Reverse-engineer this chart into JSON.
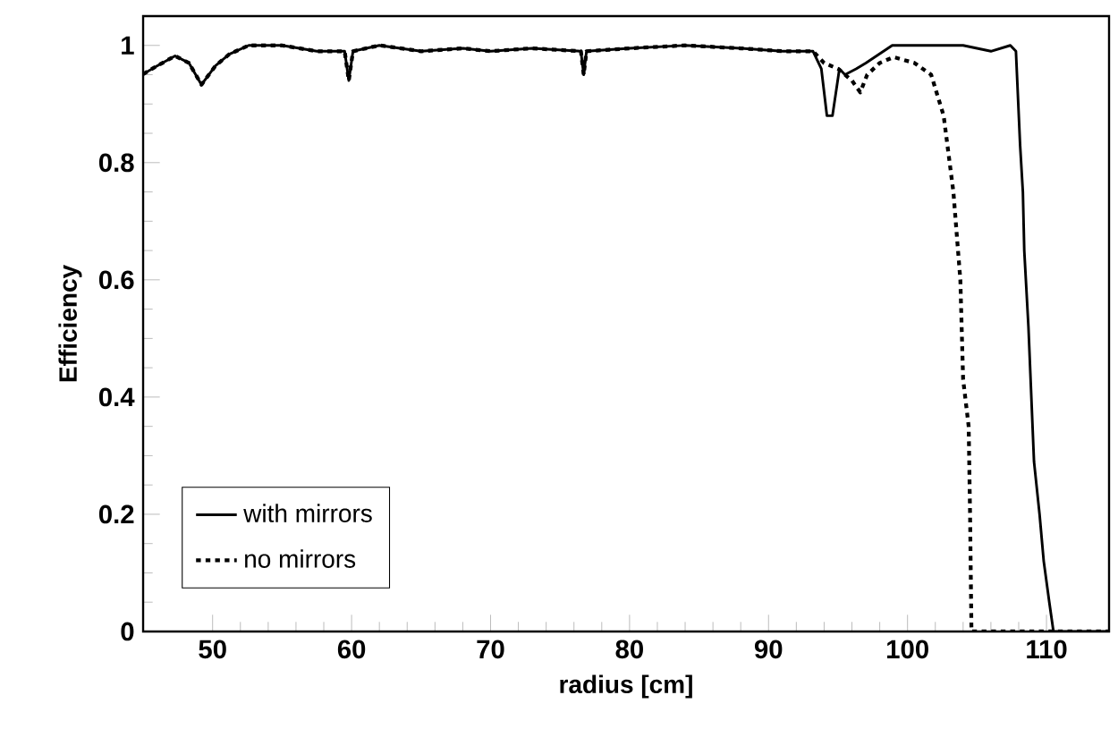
{
  "chart_data": {
    "type": "line",
    "xlabel": "radius [cm]",
    "ylabel": "Efficiency",
    "xlim": [
      45,
      114.5
    ],
    "ylim": [
      0,
      1.05
    ],
    "xticks": [
      50,
      60,
      70,
      80,
      90,
      100,
      110
    ],
    "yticks": [
      0,
      {
        "value": 0.2,
        "label": "0.2"
      },
      {
        "value": 0.4,
        "label": "0.4"
      },
      {
        "value": 0.6,
        "label": "0.6"
      },
      {
        "value": 0.8,
        "label": "0.8"
      },
      1
    ],
    "legend": "bottom left",
    "grid": false,
    "series": [
      {
        "name": "with mirrors",
        "color": "#000000",
        "line_style": "solid",
        "x": [
          45,
          46,
          47.3,
          48.3,
          49.2,
          50.2,
          51.2,
          52.6,
          55,
          57.5,
          59.5,
          59.8,
          60.1,
          62,
          65,
          68,
          70,
          73,
          76.5,
          76.7,
          76.9,
          80,
          84,
          88,
          91,
          93.2,
          93.8,
          94.2,
          94.6,
          95.1,
          95.5,
          96.3,
          97,
          98.9,
          101,
          104,
          106,
          107.4,
          107.8,
          108.1,
          108.3,
          108.4,
          108.7,
          109.1,
          109.5,
          109.8,
          110.2,
          110.5,
          112,
          114.5
        ],
        "values": [
          0.951,
          0.965,
          0.982,
          0.97,
          0.933,
          0.965,
          0.985,
          1.0,
          1.0,
          0.99,
          0.99,
          0.94,
          0.99,
          1.0,
          0.99,
          0.995,
          0.99,
          0.995,
          0.99,
          0.95,
          0.99,
          0.995,
          1.0,
          0.995,
          0.99,
          0.99,
          0.96,
          0.88,
          0.88,
          0.96,
          0.95,
          0.96,
          0.97,
          1.0,
          1.0,
          1.0,
          0.99,
          1.0,
          0.99,
          0.83,
          0.75,
          0.65,
          0.52,
          0.29,
          0.2,
          0.12,
          0.05,
          0,
          0,
          0
        ]
      },
      {
        "name": "no mirrors",
        "color": "#000000",
        "line_style": "dotted",
        "x": [
          45,
          46,
          47.3,
          48.3,
          49.2,
          50.2,
          51.2,
          52.6,
          55,
          57.5,
          59.5,
          59.8,
          60.1,
          62,
          65,
          68,
          70,
          73,
          76.5,
          76.7,
          76.9,
          80,
          84,
          88,
          91,
          93.2,
          94,
          95,
          96,
          96.6,
          97.1,
          98,
          99,
          100.5,
          101.7,
          102.6,
          103.3,
          103.8,
          104,
          104.4,
          104.5,
          104.6,
          106,
          110,
          114.5
        ],
        "values": [
          0.951,
          0.965,
          0.982,
          0.97,
          0.933,
          0.965,
          0.985,
          1.0,
          1.0,
          0.99,
          0.99,
          0.94,
          0.99,
          1.0,
          0.99,
          0.995,
          0.99,
          0.995,
          0.99,
          0.95,
          0.99,
          0.995,
          1.0,
          0.995,
          0.99,
          0.99,
          0.97,
          0.96,
          0.94,
          0.92,
          0.95,
          0.97,
          0.98,
          0.97,
          0.95,
          0.88,
          0.75,
          0.6,
          0.43,
          0.35,
          0.2,
          0,
          0,
          0,
          0
        ]
      }
    ]
  }
}
